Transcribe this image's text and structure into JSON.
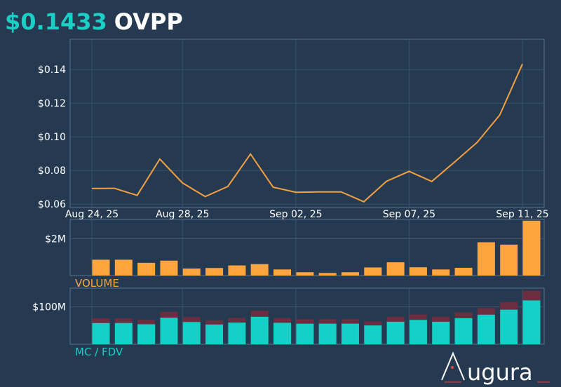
{
  "header": {
    "price": "$0.1433",
    "ticker": "OVPP"
  },
  "colors": {
    "background": "#253a50",
    "price": "#1ccfc6",
    "line": "#f5a040",
    "volume_bar": "#ffa53f",
    "mc_bar": "#14d0c6",
    "fdv_bar": "#6b2d3f",
    "grid": "#3c536b",
    "panel_border": "#5a7190"
  },
  "chart_data": [
    {
      "type": "line",
      "name": "price",
      "x_tick_labels": [
        "Aug 24, 25",
        "Aug 28, 25",
        "Sep 02, 25",
        "Sep 07, 25",
        "Sep 11, 25"
      ],
      "x_tick_index": [
        0,
        4,
        9,
        14,
        19
      ],
      "y_ticks": [
        0.06,
        0.08,
        0.1,
        0.12,
        0.14
      ],
      "y_tick_labels": [
        "$0.06",
        "$0.08",
        "$0.10",
        "$0.12",
        "$0.14"
      ],
      "ylim": [
        0.058,
        0.158
      ],
      "values": [
        0.0693,
        0.0694,
        0.0652,
        0.0868,
        0.0726,
        0.0645,
        0.0705,
        0.0898,
        0.0701,
        0.0671,
        0.0673,
        0.0673,
        0.0614,
        0.0736,
        0.0795,
        0.0735,
        0.085,
        0.0967,
        0.113,
        0.1433
      ],
      "grid": true
    },
    {
      "type": "bar",
      "name": "volume",
      "title": "VOLUME",
      "y_ticks": [
        2000000
      ],
      "y_tick_labels": [
        "$2M"
      ],
      "ylim": [
        0,
        3050000
      ],
      "values": [
        860000,
        860000,
        690000,
        810000,
        380000,
        410000,
        550000,
        620000,
        330000,
        180000,
        140000,
        180000,
        440000,
        720000,
        450000,
        330000,
        420000,
        1810000,
        1680000,
        2980000
      ]
    },
    {
      "type": "bar",
      "name": "mc-fdv",
      "title": "MC / FDV",
      "y_ticks": [
        100000000
      ],
      "y_tick_labels": [
        "$100M"
      ],
      "ylim": [
        0,
        150000000
      ],
      "series": [
        {
          "name": "MC",
          "values": [
            56700000,
            56800000,
            53400000,
            71000000,
            59400000,
            52800000,
            57700000,
            73500000,
            57400000,
            54900000,
            55100000,
            55100000,
            50300000,
            60200000,
            65100000,
            60200000,
            69600000,
            79100000,
            92500000,
            117300000
          ]
        },
        {
          "name": "FDV",
          "values": [
            69300000,
            69400000,
            65200000,
            86800000,
            72600000,
            64500000,
            70500000,
            89800000,
            70100000,
            67100000,
            67300000,
            67300000,
            61400000,
            73600000,
            79500000,
            73500000,
            85000000,
            96700000,
            113000000,
            143300000
          ]
        }
      ]
    }
  ],
  "brand": {
    "name": "ugura"
  }
}
